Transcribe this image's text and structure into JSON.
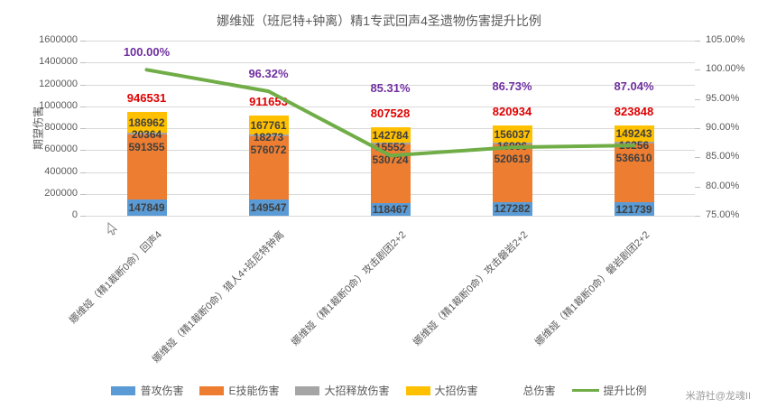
{
  "chart_data": {
    "type": "bar",
    "title": "娜维娅（班尼特+钟离）精1专武回声4圣遗物伤害提升比例",
    "watermark": "米游社@龙魂II",
    "y_left": {
      "label": "期望伤害",
      "min": 0,
      "max": 1600000,
      "step": 200000,
      "ticks": [
        "1600000",
        "1400000",
        "1200000",
        "1000000",
        "800000",
        "600000",
        "400000",
        "200000",
        "0"
      ]
    },
    "y_right": {
      "min": 75,
      "max": 105,
      "step": 5,
      "ticks": [
        "105.00%",
        "100.00%",
        "95.00%",
        "90.00%",
        "85.00%",
        "80.00%",
        "75.00%"
      ]
    },
    "categories": [
      "娜维娅（精1裁断0命）回声4",
      "娜维娅（精1裁断0命）猎人4+班尼特钟离",
      "娜维娅（精1裁断0命）攻击剧团2+2",
      "娜维娅（精1裁断0命）攻击磐岩2+2",
      "娜维娅（精1裁断0命）磐岩剧团2+2"
    ],
    "series": [
      {
        "name": "普攻伤害",
        "color": "#5B9BD5",
        "values": [
          147849,
          149547,
          118467,
          127282,
          121739
        ]
      },
      {
        "name": "E技能伤害",
        "color": "#ED7D31",
        "values": [
          591355,
          576072,
          530724,
          520619,
          536610
        ]
      },
      {
        "name": "大招释放伤害",
        "color": "#A5A5A5",
        "values": [
          20364,
          18273,
          15552,
          16996,
          16256
        ]
      },
      {
        "name": "大招伤害",
        "color": "#FFC000",
        "values": [
          186962,
          167761,
          142784,
          156037,
          149243
        ]
      }
    ],
    "totals": {
      "name": "总伤害",
      "color": "#e00000",
      "values": [
        946531,
        911653,
        807528,
        820934,
        823848
      ]
    },
    "line": {
      "name": "提升比例",
      "color": "#70AD47",
      "label_color": "#7030A0",
      "values": [
        100.0,
        96.32,
        85.31,
        86.73,
        87.04
      ],
      "labels": [
        "100.00%",
        "96.32%",
        "85.31%",
        "86.73%",
        "87.04%"
      ]
    },
    "legend": [
      {
        "label": "普攻伤害",
        "type": "bar",
        "color": "#5B9BD5"
      },
      {
        "label": "E技能伤害",
        "type": "bar",
        "color": "#ED7D31"
      },
      {
        "label": "大招释放伤害",
        "type": "bar",
        "color": "#A5A5A5"
      },
      {
        "label": "大招伤害",
        "type": "bar",
        "color": "#FFC000"
      },
      {
        "label": "总伤害",
        "type": "none",
        "color": "#FFFFFF"
      },
      {
        "label": "提升比例",
        "type": "line",
        "color": "#70AD47"
      }
    ]
  }
}
